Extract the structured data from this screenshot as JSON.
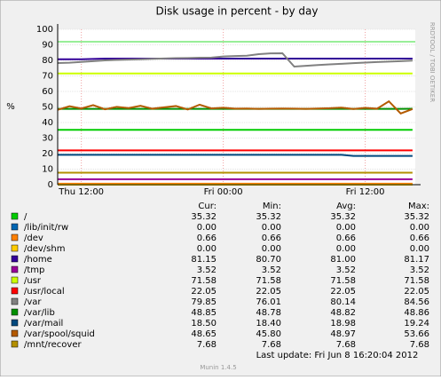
{
  "chart_data": {
    "type": "line",
    "title": "Disk usage in percent - by day",
    "y_label": "%",
    "side_text": "RRDTOOL / TOBI OETIKER",
    "footer": "Last update:  Fri Jun  8 16:20:04 2012",
    "version": "Munin 1.4.5",
    "stat_headers": [
      "Cur:",
      "Min:",
      "Avg:",
      "Max:"
    ],
    "categories": [
      null,
      null,
      "Thu 12:00",
      null,
      null,
      null,
      null,
      null,
      null,
      null,
      null,
      null,
      null,
      null,
      "Fri 00:00",
      null,
      null,
      null,
      null,
      null,
      null,
      null,
      null,
      null,
      null,
      null,
      "Fri 12:00",
      null,
      null,
      null,
      null
    ],
    "ylim": [
      0,
      100
    ],
    "yticks": [
      0,
      10,
      20,
      30,
      40,
      50,
      60,
      70,
      80,
      90,
      100
    ],
    "grid": true,
    "hlines": [
      {
        "value": 92,
        "color": "#33dd33"
      }
    ],
    "series": [
      {
        "name": "/",
        "color": "#00cc00",
        "stats": [
          "35.32",
          "35.32",
          "35.32",
          "35.32"
        ],
        "values": [
          35.32,
          35.32,
          35.32,
          35.32,
          35.32,
          35.32,
          35.32,
          35.32,
          35.32,
          35.32,
          35.32,
          35.32,
          35.32,
          35.32,
          35.32,
          35.32,
          35.32,
          35.32,
          35.32,
          35.32,
          35.32,
          35.32,
          35.32,
          35.32,
          35.32,
          35.32,
          35.32,
          35.32,
          35.32,
          35.32,
          35.32
        ]
      },
      {
        "name": "/lib/init/rw",
        "color": "#0066b3",
        "stats": [
          "0.00",
          "0.00",
          "0.00",
          "0.00"
        ],
        "values": [
          0,
          0,
          0,
          0,
          0,
          0,
          0,
          0,
          0,
          0,
          0,
          0,
          0,
          0,
          0,
          0,
          0,
          0,
          0,
          0,
          0,
          0,
          0,
          0,
          0,
          0,
          0,
          0,
          0,
          0,
          0
        ]
      },
      {
        "name": "/dev",
        "color": "#ff8000",
        "stats": [
          "0.66",
          "0.66",
          "0.66",
          "0.66"
        ],
        "values": [
          0.66,
          0.66,
          0.66,
          0.66,
          0.66,
          0.66,
          0.66,
          0.66,
          0.66,
          0.66,
          0.66,
          0.66,
          0.66,
          0.66,
          0.66,
          0.66,
          0.66,
          0.66,
          0.66,
          0.66,
          0.66,
          0.66,
          0.66,
          0.66,
          0.66,
          0.66,
          0.66,
          0.66,
          0.66,
          0.66,
          0.66
        ]
      },
      {
        "name": "/dev/shm",
        "color": "#ffcc00",
        "stats": [
          "0.00",
          "0.00",
          "0.00",
          "0.00"
        ],
        "values": [
          0,
          0,
          0,
          0,
          0,
          0,
          0,
          0,
          0,
          0,
          0,
          0,
          0,
          0,
          0,
          0,
          0,
          0,
          0,
          0,
          0,
          0,
          0,
          0,
          0,
          0,
          0,
          0,
          0,
          0,
          0
        ]
      },
      {
        "name": "/home",
        "color": "#330099",
        "stats": [
          "81.15",
          "80.70",
          "81.00",
          "81.17"
        ],
        "values": [
          80.7,
          80.7,
          80.7,
          80.9,
          81.15,
          81.15,
          81.15,
          81.15,
          81.15,
          81.15,
          81.15,
          81.15,
          81.15,
          81.15,
          81.15,
          81.15,
          81.15,
          81.15,
          81.15,
          81.15,
          81.15,
          81.15,
          81.15,
          81.15,
          81.15,
          81.15,
          81.15,
          81.15,
          81.15,
          81.15,
          81.15
        ]
      },
      {
        "name": "/tmp",
        "color": "#990099",
        "stats": [
          "3.52",
          "3.52",
          "3.52",
          "3.52"
        ],
        "values": [
          3.52,
          3.52,
          3.52,
          3.52,
          3.52,
          3.52,
          3.52,
          3.52,
          3.52,
          3.52,
          3.52,
          3.52,
          3.52,
          3.52,
          3.52,
          3.52,
          3.52,
          3.52,
          3.52,
          3.52,
          3.52,
          3.52,
          3.52,
          3.52,
          3.52,
          3.52,
          3.52,
          3.52,
          3.52,
          3.52,
          3.52
        ]
      },
      {
        "name": "/usr",
        "color": "#ccff00",
        "stats": [
          "71.58",
          "71.58",
          "71.58",
          "71.58"
        ],
        "values": [
          71.58,
          71.58,
          71.58,
          71.58,
          71.58,
          71.58,
          71.58,
          71.58,
          71.58,
          71.58,
          71.58,
          71.58,
          71.58,
          71.58,
          71.58,
          71.58,
          71.58,
          71.58,
          71.58,
          71.58,
          71.58,
          71.58,
          71.58,
          71.58,
          71.58,
          71.58,
          71.58,
          71.58,
          71.58,
          71.58,
          71.58
        ]
      },
      {
        "name": "/usr/local",
        "color": "#ff0000",
        "stats": [
          "22.05",
          "22.05",
          "22.05",
          "22.05"
        ],
        "values": [
          22.05,
          22.05,
          22.05,
          22.05,
          22.05,
          22.05,
          22.05,
          22.05,
          22.05,
          22.05,
          22.05,
          22.05,
          22.05,
          22.05,
          22.05,
          22.05,
          22.05,
          22.05,
          22.05,
          22.05,
          22.05,
          22.05,
          22.05,
          22.05,
          22.05,
          22.05,
          22.05,
          22.05,
          22.05,
          22.05,
          22.05
        ]
      },
      {
        "name": "/var",
        "color": "#808080",
        "stats": [
          "79.85",
          "76.01",
          "80.14",
          "84.56"
        ],
        "values": [
          78.3,
          78.5,
          79,
          79.5,
          80,
          80.3,
          80.5,
          80.7,
          81,
          81.2,
          81.4,
          81.5,
          81.7,
          81.8,
          82.5,
          82.8,
          83,
          84,
          84.5,
          84.56,
          76.01,
          76.5,
          77,
          77.4,
          77.8,
          78.2,
          78.6,
          78.9,
          79.2,
          79.5,
          79.85
        ]
      },
      {
        "name": "/var/lib",
        "color": "#008f00",
        "stats": [
          "48.85",
          "48.78",
          "48.82",
          "48.86"
        ],
        "values": [
          48.8,
          48.8,
          48.8,
          48.8,
          48.8,
          48.8,
          48.8,
          48.8,
          48.8,
          48.8,
          48.8,
          48.8,
          48.8,
          48.8,
          48.8,
          48.8,
          48.8,
          48.8,
          48.8,
          48.8,
          48.8,
          48.8,
          48.8,
          48.8,
          48.8,
          48.8,
          48.8,
          48.8,
          48.8,
          48.8,
          48.85
        ]
      },
      {
        "name": "/var/mail",
        "color": "#00487d",
        "stats": [
          "18.50",
          "18.40",
          "18.98",
          "19.24"
        ],
        "values": [
          19.24,
          19.24,
          19.24,
          19.24,
          19.24,
          19.24,
          19.24,
          19.24,
          19.24,
          19.24,
          19.24,
          19.24,
          19.24,
          19.24,
          19.24,
          19.24,
          19.24,
          19.24,
          19.24,
          19.24,
          19.24,
          19.24,
          19.24,
          19.24,
          19.24,
          18.5,
          18.5,
          18.5,
          18.5,
          18.5,
          18.5
        ]
      },
      {
        "name": "/var/spool/squid",
        "color": "#b35a00",
        "stats": [
          "48.65",
          "45.80",
          "48.97",
          "53.66"
        ],
        "values": [
          48.2,
          50.5,
          49,
          51.2,
          48.5,
          50.1,
          49.3,
          50.8,
          48.9,
          49.8,
          50.6,
          48.4,
          51.5,
          49.1,
          49.5,
          48.9,
          49,
          48.8,
          48.9,
          49,
          48.9,
          48.8,
          49,
          49.2,
          49.6,
          48.7,
          49.4,
          48.9,
          53.66,
          45.8,
          48.65
        ]
      },
      {
        "name": "/mnt/recover",
        "color": "#b38f00",
        "stats": [
          "7.68",
          "7.68",
          "7.68",
          "7.68"
        ],
        "values": [
          7.68,
          7.68,
          7.68,
          7.68,
          7.68,
          7.68,
          7.68,
          7.68,
          7.68,
          7.68,
          7.68,
          7.68,
          7.68,
          7.68,
          7.68,
          7.68,
          7.68,
          7.68,
          7.68,
          7.68,
          7.68,
          7.68,
          7.68,
          7.68,
          7.68,
          7.68,
          7.68,
          7.68,
          7.68,
          7.68,
          7.68
        ]
      }
    ]
  }
}
